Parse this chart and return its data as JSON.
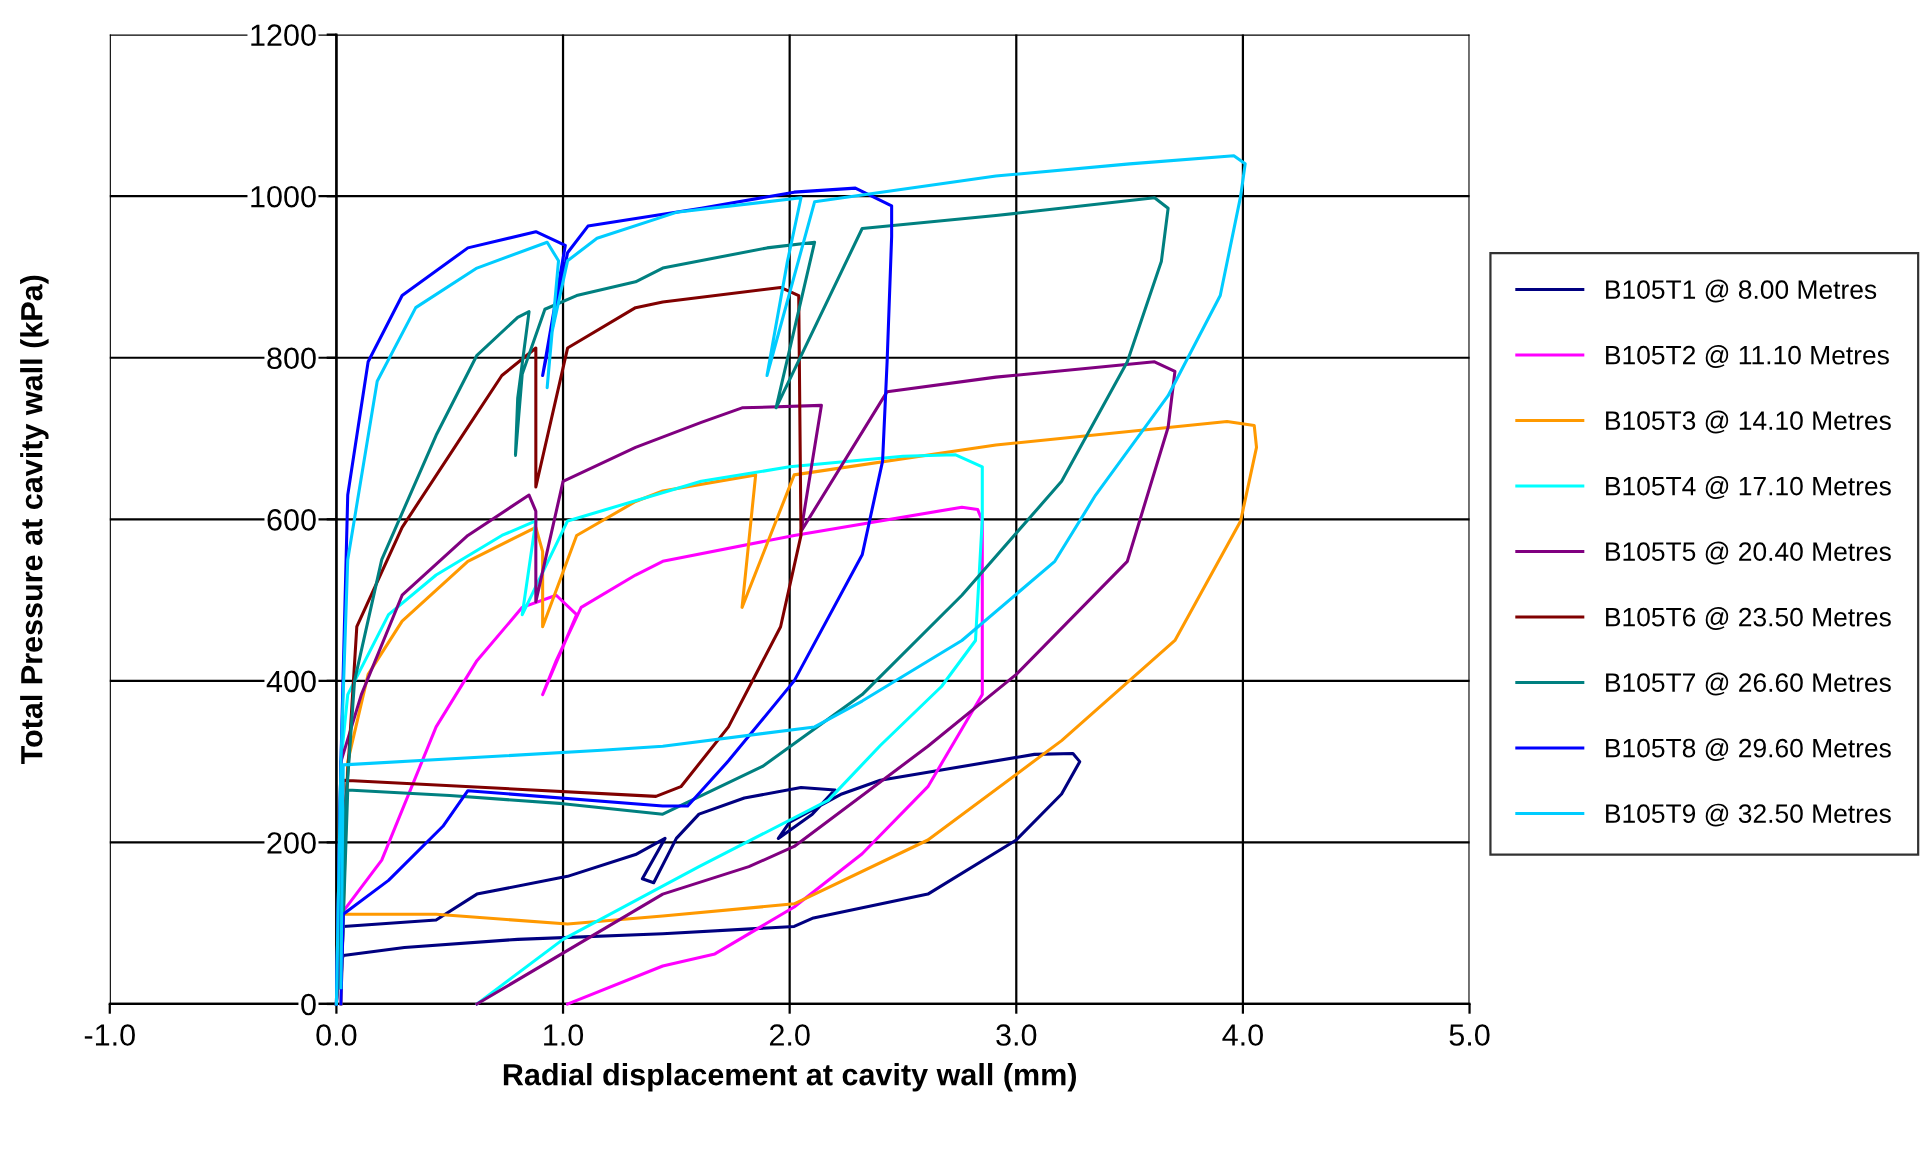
{
  "chart_data": {
    "type": "line",
    "xlabel": "Radial displacement at cavity wall (mm)",
    "ylabel": "Total Pressure at cavity wall (kPa)",
    "xlim": [
      -1,
      5
    ],
    "ylim": [
      0,
      1200
    ],
    "xticks": [
      {
        "value": -1,
        "label": "-1.0"
      },
      {
        "value": 0,
        "label": "0.0"
      },
      {
        "value": 1,
        "label": "1.0"
      },
      {
        "value": 2,
        "label": "2.0"
      },
      {
        "value": 3,
        "label": "3.0"
      },
      {
        "value": 4,
        "label": "4.0"
      },
      {
        "value": 5,
        "label": "5.0"
      }
    ],
    "yticks": [
      0,
      200,
      400,
      600,
      800,
      1000,
      1200
    ],
    "grid": true,
    "legend": "right",
    "marker": "none",
    "line_style": "solid",
    "series": [
      {
        "name": "B105T1 @ 8.00 Metres",
        "color": "#000080",
        "x": [
          0,
          0.01,
          0.03,
          0.3,
          0.8,
          1.44,
          2.02,
          2.1,
          2.61,
          3.0,
          3.2,
          3.28,
          3.25,
          3.08,
          2.4,
          2.23,
          2.0,
          1.95,
          2.1,
          2.2,
          2.05,
          1.8,
          1.6,
          1.5,
          1.4,
          1.35,
          1.45,
          1.32,
          1.02,
          0.62,
          0.44,
          0.03,
          0.02
        ],
        "values": [
          0,
          40,
          60,
          70,
          80,
          87,
          96,
          106,
          136,
          203,
          260,
          300,
          310,
          309,
          277,
          260,
          225,
          205,
          235,
          265,
          268,
          255,
          235,
          205,
          150,
          155,
          205,
          185,
          158,
          136,
          104,
          96,
          20
        ]
      },
      {
        "name": "B105T2 @ 11.10 Metres",
        "color": "#ff00ff",
        "x": [
          0,
          0.02,
          0.2,
          0.44,
          0.62,
          0.82,
          0.97,
          1.06,
          0.91,
          0.97,
          1.08,
          1.32,
          1.44,
          2.02,
          2.76,
          2.83,
          2.85,
          2.85,
          2.85,
          2.78,
          2.61,
          2.32,
          2.02,
          1.67,
          1.44,
          1.02
        ],
        "values": [
          0,
          111,
          178,
          343,
          425,
          491,
          506,
          482,
          383,
          425,
          491,
          531,
          548,
          580,
          615,
          612,
          598,
          450,
          383,
          350,
          269,
          186,
          120,
          62,
          47,
          0
        ]
      },
      {
        "name": "B105T3 @ 14.10 Metres",
        "color": "#ff9900",
        "x": [
          0.02,
          0.03,
          0.05,
          0.14,
          0.29,
          0.58,
          0.88,
          0.91,
          0.91,
          1.06,
          1.32,
          1.44,
          1.85,
          1.79,
          2.02,
          2.91,
          3.93,
          4.05,
          4.06,
          3.99,
          3.7,
          3.2,
          2.61,
          2.02,
          1.44,
          1.02,
          0.44,
          0.03,
          0.02
        ],
        "values": [
          0,
          110,
          300,
          408,
          474,
          548,
          590,
          560,
          467,
          580,
          622,
          635,
          655,
          491,
          655,
          692,
          721,
          716,
          689,
          598,
          450,
          326,
          203,
          124,
          109,
          99,
          111,
          111,
          20
        ]
      },
      {
        "name": "B105T4 @ 17.10 Metres",
        "color": "#00ffff",
        "x": [
          0,
          0.02,
          0.05,
          0.23,
          0.44,
          0.73,
          0.88,
          0.82,
          1.02,
          1.61,
          2.0,
          2.5,
          2.73,
          2.85,
          2.85,
          2.82,
          2.67,
          2.4,
          2.17,
          1.6,
          1.0,
          0.62
        ],
        "values": [
          0,
          300,
          383,
          482,
          531,
          580,
          598,
          482,
          598,
          647,
          665,
          678,
          680,
          665,
          600,
          450,
          393,
          320,
          252,
          170,
          80,
          0
        ]
      },
      {
        "name": "B105T5 @ 20.40 Metres",
        "color": "#800080",
        "x": [
          0,
          0.02,
          0.11,
          0.29,
          0.58,
          0.85,
          0.88,
          0.88,
          1.0,
          1.32,
          1.61,
          1.79,
          2.14,
          2.05,
          2.43,
          2.91,
          3.61,
          3.7,
          3.67,
          3.49,
          3.0,
          2.61,
          2.02,
          1.82,
          1.44,
          0.62
        ],
        "values": [
          0,
          300,
          383,
          506,
          580,
          630,
          610,
          498,
          647,
          689,
          720,
          738,
          741,
          585,
          758,
          776,
          795,
          783,
          714,
          548,
          408,
          319,
          195,
          170,
          136,
          0
        ]
      },
      {
        "name": "B105T6 @ 23.50 Metres",
        "color": "#800000",
        "x": [
          0,
          0.02,
          0.09,
          0.29,
          0.58,
          0.73,
          0.88,
          0.88,
          1.02,
          1.32,
          1.44,
          1.96,
          2.04,
          2.05,
          1.96,
          1.73,
          1.52,
          1.41,
          0.03,
          0.02
        ],
        "values": [
          0,
          150,
          467,
          590,
          714,
          778,
          812,
          640,
          812,
          862,
          869,
          887,
          877,
          580,
          467,
          343,
          269,
          257,
          277,
          20
        ]
      },
      {
        "name": "B105T7 @ 26.60 Metres",
        "color": "#008080",
        "x": [
          0,
          0.03,
          0.08,
          0.2,
          0.44,
          0.62,
          0.8,
          0.85,
          0.8,
          0.79,
          0.82,
          0.92,
          1.06,
          1.32,
          1.44,
          1.9,
          2.11,
          1.94,
          2.32,
          2.91,
          3.61,
          3.67,
          3.64,
          3.49,
          3.2,
          2.76,
          2.32,
          1.88,
          1.44,
          1.0,
          0.5,
          0.05,
          0.02
        ],
        "values": [
          0,
          200,
          400,
          550,
          704,
          803,
          850,
          857,
          750,
          679,
          780,
          860,
          877,
          894,
          911,
          936,
          943,
          738,
          960,
          976,
          998,
          985,
          919,
          795,
          647,
          506,
          383,
          294,
          235,
          248,
          258,
          265,
          20
        ]
      },
      {
        "name": "B105T8 @ 29.60 Metres",
        "color": "#0000ff",
        "x": [
          0,
          0.02,
          0.05,
          0.14,
          0.29,
          0.58,
          0.88,
          1.01,
          0.91,
          1.02,
          1.11,
          1.61,
          2.02,
          2.29,
          2.45,
          2.45,
          2.43,
          2.41,
          2.32,
          2.02,
          1.73,
          1.55,
          1.44,
          0.58,
          0.47,
          0.23,
          0.03,
          0.02
        ],
        "values": [
          0,
          300,
          630,
          795,
          877,
          936,
          956,
          939,
          778,
          930,
          963,
          985,
          1005,
          1010,
          988,
          950,
          795,
          672,
          556,
          400,
          301,
          245,
          245,
          264,
          220,
          153,
          111,
          0
        ]
      },
      {
        "name": "B105T9 @ 32.50 Metres",
        "color": "#00ccff",
        "x": [
          0,
          0.02,
          0.05,
          0.18,
          0.35,
          0.62,
          0.93,
          0.98,
          0.93,
          0.95,
          1.02,
          1.15,
          1.5,
          2.05,
          1.99,
          1.9,
          2.11,
          2.91,
          3.5,
          3.96,
          4.01,
          3.99,
          3.9,
          3.67,
          3.35,
          3.17,
          2.76,
          2.32,
          2.11,
          1.44,
          1.17,
          0.03,
          0.02
        ],
        "values": [
          0,
          300,
          550,
          771,
          862,
          911,
          943,
          920,
          763,
          830,
          920,
          948,
          980,
          998,
          919,
          778,
          993,
          1025,
          1040,
          1050,
          1040,
          1000,
          877,
          753,
          630,
          548,
          450,
          375,
          343,
          319,
          314,
          296,
          20
        ]
      }
    ]
  }
}
